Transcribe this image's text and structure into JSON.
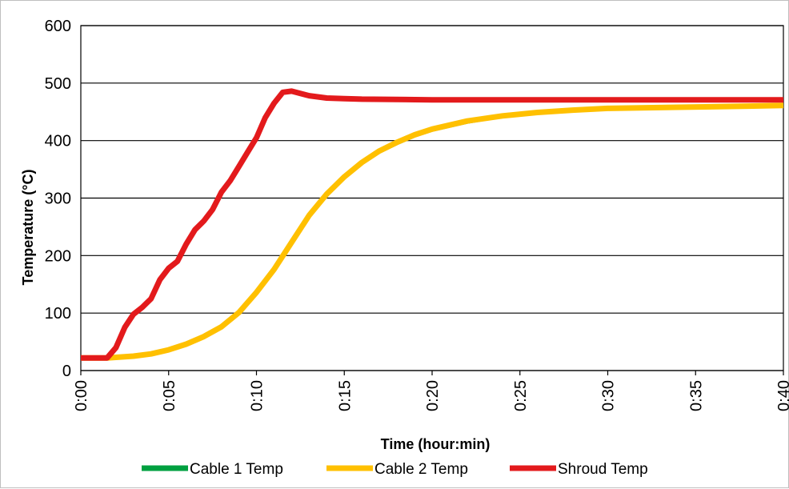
{
  "chart_data": {
    "type": "line",
    "title": "",
    "xlabel": "Time (hour:min)",
    "ylabel": "Temperature (°C)",
    "x_unit": "minutes",
    "xlim": [
      0,
      40
    ],
    "ylim": [
      0,
      600
    ],
    "x_ticks": [
      0,
      5,
      10,
      15,
      20,
      25,
      30,
      35,
      40
    ],
    "x_tick_labels": [
      "0:00",
      "0:05",
      "0:10",
      "0:15",
      "0:20",
      "0:25",
      "0:30",
      "0:35",
      "0:40"
    ],
    "y_ticks": [
      0,
      100,
      200,
      300,
      400,
      500,
      600
    ],
    "y_tick_labels": [
      "0",
      "100",
      "200",
      "300",
      "400",
      "500",
      "600"
    ],
    "grid": "horizontal",
    "legend_position": "bottom",
    "series": [
      {
        "name": "Cable 1 Temp",
        "color": "#00a040",
        "points": [
          [
            0,
            22
          ],
          [
            1.5,
            22
          ],
          [
            2,
            23
          ],
          [
            3,
            25
          ],
          [
            4,
            29
          ],
          [
            5,
            35
          ],
          [
            6,
            45
          ],
          [
            7,
            58
          ],
          [
            8,
            75
          ],
          [
            9,
            100
          ],
          [
            10,
            135
          ],
          [
            11,
            175
          ],
          [
            12,
            222
          ],
          [
            13,
            268
          ],
          [
            14,
            305
          ],
          [
            15,
            335
          ],
          [
            16,
            360
          ],
          [
            17,
            380
          ],
          [
            18,
            395
          ],
          [
            19,
            408
          ],
          [
            20,
            418
          ],
          [
            22,
            432
          ],
          [
            24,
            442
          ],
          [
            26,
            448
          ],
          [
            28,
            452
          ],
          [
            30,
            455
          ],
          [
            34,
            458
          ],
          [
            38,
            460
          ],
          [
            40,
            461
          ]
        ]
      },
      {
        "name": "Cable 2 Temp",
        "color": "#ffc000",
        "points": [
          [
            0,
            22
          ],
          [
            1.5,
            22
          ],
          [
            2,
            23
          ],
          [
            3,
            25
          ],
          [
            4,
            29
          ],
          [
            5,
            36
          ],
          [
            6,
            46
          ],
          [
            7,
            59
          ],
          [
            8,
            76
          ],
          [
            9,
            101
          ],
          [
            10,
            136
          ],
          [
            11,
            176
          ],
          [
            12,
            223
          ],
          [
            13,
            270
          ],
          [
            14,
            307
          ],
          [
            15,
            337
          ],
          [
            16,
            362
          ],
          [
            17,
            382
          ],
          [
            18,
            397
          ],
          [
            19,
            410
          ],
          [
            20,
            420
          ],
          [
            22,
            434
          ],
          [
            24,
            443
          ],
          [
            26,
            449
          ],
          [
            28,
            453
          ],
          [
            30,
            456
          ],
          [
            34,
            458
          ],
          [
            38,
            460
          ],
          [
            40,
            461
          ]
        ]
      },
      {
        "name": "Shroud Temp",
        "color": "#e31a1c",
        "points": [
          [
            0,
            22
          ],
          [
            1.5,
            22
          ],
          [
            2,
            40
          ],
          [
            2.5,
            75
          ],
          [
            3,
            98
          ],
          [
            3.5,
            110
          ],
          [
            4,
            125
          ],
          [
            4.5,
            158
          ],
          [
            5,
            178
          ],
          [
            5.5,
            190
          ],
          [
            6,
            220
          ],
          [
            6.5,
            245
          ],
          [
            7,
            260
          ],
          [
            7.5,
            280
          ],
          [
            8,
            310
          ],
          [
            8.5,
            330
          ],
          [
            9,
            355
          ],
          [
            9.5,
            380
          ],
          [
            10,
            405
          ],
          [
            10.5,
            440
          ],
          [
            11,
            465
          ],
          [
            11.5,
            484
          ],
          [
            12,
            486
          ],
          [
            13,
            478
          ],
          [
            14,
            474
          ],
          [
            15,
            473
          ],
          [
            16,
            472
          ],
          [
            20,
            471
          ],
          [
            30,
            471
          ],
          [
            40,
            471
          ]
        ]
      }
    ]
  }
}
